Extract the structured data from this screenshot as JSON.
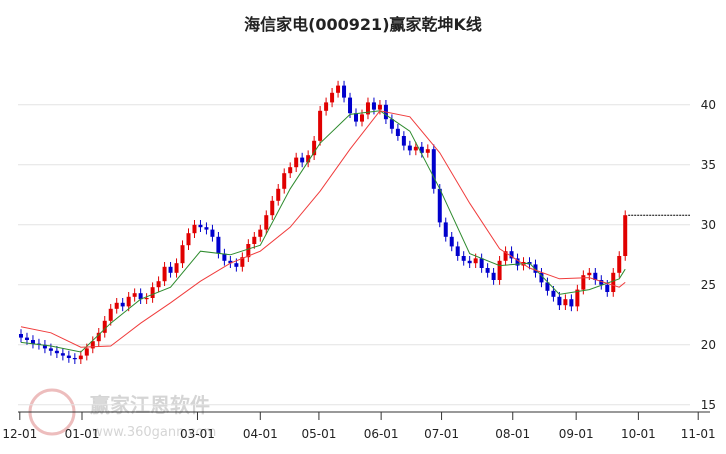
{
  "chart_data": {
    "type": "candlestick",
    "title": "海信家电(000921)赢家乾坤K线",
    "watermark": "赢家江恩软件",
    "watermark_url": "www.360gann.com",
    "up_color": "#e00000",
    "down_color": "#0000cc",
    "grid": true,
    "ylim": [
      14.4,
      45.4
    ],
    "yticks": [
      15,
      20,
      25,
      30,
      35,
      40
    ],
    "xlim": [
      0,
      114
    ],
    "xticks": [
      {
        "value": 0.3,
        "label": "12-01"
      },
      {
        "value": 10.7,
        "label": "01-01"
      },
      {
        "value": 30,
        "label": "03-01"
      },
      {
        "value": 40.5,
        "label": "04-01"
      },
      {
        "value": 50.3,
        "label": "05-01"
      },
      {
        "value": 60.7,
        "label": "06-01"
      },
      {
        "value": 70.8,
        "label": "07-01"
      },
      {
        "value": 82.7,
        "label": "08-01"
      },
      {
        "value": 93.3,
        "label": "09-01"
      },
      {
        "value": 103.7,
        "label": "10-01"
      },
      {
        "value": 113.7,
        "label": "11-01"
      }
    ],
    "open": [
      20.9,
      20.6,
      20.4,
      20.1,
      20.0,
      19.7,
      19.5,
      19.3,
      19.1,
      18.9,
      18.8,
      19.1,
      19.7,
      20.3,
      21.0,
      22.0,
      23.0,
      23.5,
      23.2,
      24.0,
      24.3,
      23.8,
      23.9,
      24.8,
      25.3,
      26.5,
      26.0,
      26.8,
      28.3,
      29.3,
      30.0,
      29.8,
      29.6,
      29.0,
      27.6,
      27.0,
      26.8,
      26.5,
      27.3,
      28.4,
      29.0,
      29.6,
      30.8,
      32.0,
      33.0,
      34.3,
      34.8,
      35.6,
      35.2,
      35.8,
      37.0,
      39.5,
      40.2,
      41.0,
      41.6,
      40.6,
      39.3,
      38.6,
      39.2,
      40.2,
      39.6,
      40.0,
      38.8,
      38.0,
      37.4,
      36.6,
      36.2,
      36.5,
      36.0,
      36.3,
      33.0,
      30.2,
      29.0,
      28.2,
      27.4,
      27.0,
      26.8,
      27.2,
      26.4,
      26.0,
      25.4,
      27.0,
      27.8,
      27.2,
      26.6,
      26.9,
      26.7,
      26.0,
      25.2,
      24.5,
      24.0,
      23.3,
      23.8,
      23.2,
      24.6,
      25.8,
      26.0,
      25.4,
      25.0,
      24.4,
      26.0,
      27.4
    ],
    "high": [
      21.3,
      21.0,
      20.8,
      20.5,
      20.4,
      20.1,
      19.9,
      19.7,
      19.5,
      19.3,
      19.5,
      20.1,
      20.7,
      21.4,
      22.4,
      23.4,
      23.9,
      23.9,
      24.4,
      24.7,
      24.7,
      24.3,
      25.2,
      25.7,
      26.9,
      26.9,
      27.2,
      28.7,
      29.7,
      30.4,
      30.4,
      30.2,
      30.0,
      29.4,
      28.0,
      27.4,
      27.2,
      27.7,
      28.8,
      29.4,
      30.0,
      31.2,
      32.4,
      33.4,
      34.7,
      35.2,
      36.0,
      36.0,
      36.2,
      37.4,
      39.9,
      40.6,
      41.4,
      42.0,
      42.0,
      41.0,
      39.7,
      39.6,
      40.6,
      40.6,
      40.4,
      40.4,
      39.2,
      38.4,
      37.8,
      37.0,
      36.9,
      36.9,
      36.7,
      36.7,
      33.4,
      30.6,
      29.4,
      28.6,
      27.8,
      27.4,
      27.6,
      27.6,
      26.8,
      26.4,
      27.4,
      28.2,
      28.2,
      27.6,
      27.3,
      27.3,
      27.1,
      26.4,
      25.6,
      24.9,
      24.4,
      24.2,
      24.2,
      25.0,
      26.2,
      26.4,
      26.4,
      25.8,
      25.4,
      26.4,
      27.8,
      31.2
    ],
    "low": [
      20.2,
      20.0,
      19.7,
      19.6,
      19.3,
      19.1,
      18.9,
      18.7,
      18.5,
      18.4,
      18.4,
      18.7,
      19.3,
      19.9,
      20.6,
      21.6,
      22.6,
      22.8,
      22.8,
      23.6,
      23.4,
      23.4,
      23.5,
      24.4,
      24.9,
      25.6,
      25.6,
      26.4,
      27.9,
      28.9,
      29.4,
      29.2,
      28.6,
      27.2,
      26.6,
      26.4,
      26.1,
      26.1,
      26.9,
      28.0,
      28.6,
      29.2,
      30.4,
      31.6,
      32.6,
      33.9,
      34.4,
      34.8,
      34.8,
      35.4,
      36.6,
      39.1,
      39.8,
      40.6,
      40.2,
      38.9,
      38.2,
      38.2,
      38.8,
      39.2,
      39.2,
      38.4,
      37.6,
      37.0,
      36.2,
      35.8,
      35.8,
      35.6,
      35.6,
      32.6,
      29.8,
      28.6,
      27.8,
      27.0,
      26.6,
      26.4,
      26.4,
      26.0,
      25.6,
      25.0,
      25.0,
      26.6,
      26.8,
      26.2,
      26.2,
      26.3,
      25.6,
      24.8,
      24.1,
      23.6,
      22.9,
      22.9,
      22.8,
      22.8,
      24.2,
      25.4,
      25.0,
      24.6,
      24.0,
      24.0,
      25.6,
      27.0
    ],
    "close": [
      20.6,
      20.4,
      20.1,
      20.0,
      19.7,
      19.5,
      19.3,
      19.1,
      18.9,
      18.8,
      19.1,
      19.7,
      20.3,
      21.0,
      22.0,
      23.0,
      23.5,
      23.2,
      24.0,
      24.3,
      23.8,
      23.9,
      24.8,
      25.3,
      26.5,
      26.0,
      26.8,
      28.3,
      29.3,
      30.0,
      29.8,
      29.6,
      29.0,
      27.6,
      27.0,
      26.8,
      26.5,
      27.3,
      28.4,
      29.0,
      29.6,
      30.8,
      32.0,
      33.0,
      34.3,
      34.8,
      35.6,
      35.2,
      35.8,
      37.0,
      39.5,
      40.2,
      41.0,
      41.6,
      40.6,
      39.3,
      38.6,
      39.2,
      40.2,
      39.6,
      40.0,
      38.8,
      38.0,
      37.4,
      36.6,
      36.2,
      36.5,
      36.0,
      36.3,
      33.0,
      30.2,
      29.0,
      28.2,
      27.4,
      27.0,
      26.8,
      27.2,
      26.4,
      26.0,
      25.4,
      27.0,
      27.8,
      27.2,
      26.6,
      26.9,
      26.7,
      26.0,
      25.2,
      24.5,
      24.0,
      23.3,
      23.8,
      23.2,
      24.6,
      25.8,
      26.0,
      25.4,
      25.0,
      24.4,
      26.0,
      27.4,
      30.8
    ],
    "series": [
      {
        "color": "#2e8b2e",
        "x": [
          0,
          5,
          10,
          15,
          20,
          25,
          30,
          35,
          40,
          45,
          50,
          55,
          60,
          65,
          70,
          75,
          80,
          85,
          90,
          95,
          100,
          101
        ],
        "values": [
          20.2,
          19.9,
          19.4,
          21.8,
          23.8,
          24.8,
          27.8,
          27.5,
          28.3,
          33.0,
          36.8,
          39.2,
          39.5,
          37.8,
          33.0,
          27.6,
          26.6,
          26.8,
          24.2,
          24.6,
          25.5,
          26.3
        ]
      },
      {
        "color": "#f03c3c",
        "x": [
          0,
          5,
          10,
          15,
          20,
          25,
          30,
          35,
          40,
          45,
          50,
          55,
          60,
          65,
          70,
          75,
          80,
          85,
          90,
          95,
          100,
          101
        ],
        "values": [
          21.5,
          21.0,
          19.8,
          19.9,
          21.8,
          23.5,
          25.3,
          26.8,
          27.8,
          29.8,
          32.8,
          36.3,
          39.5,
          39.0,
          36.0,
          31.8,
          28.0,
          26.4,
          25.5,
          25.6,
          24.8,
          25.2
        ]
      }
    ]
  }
}
